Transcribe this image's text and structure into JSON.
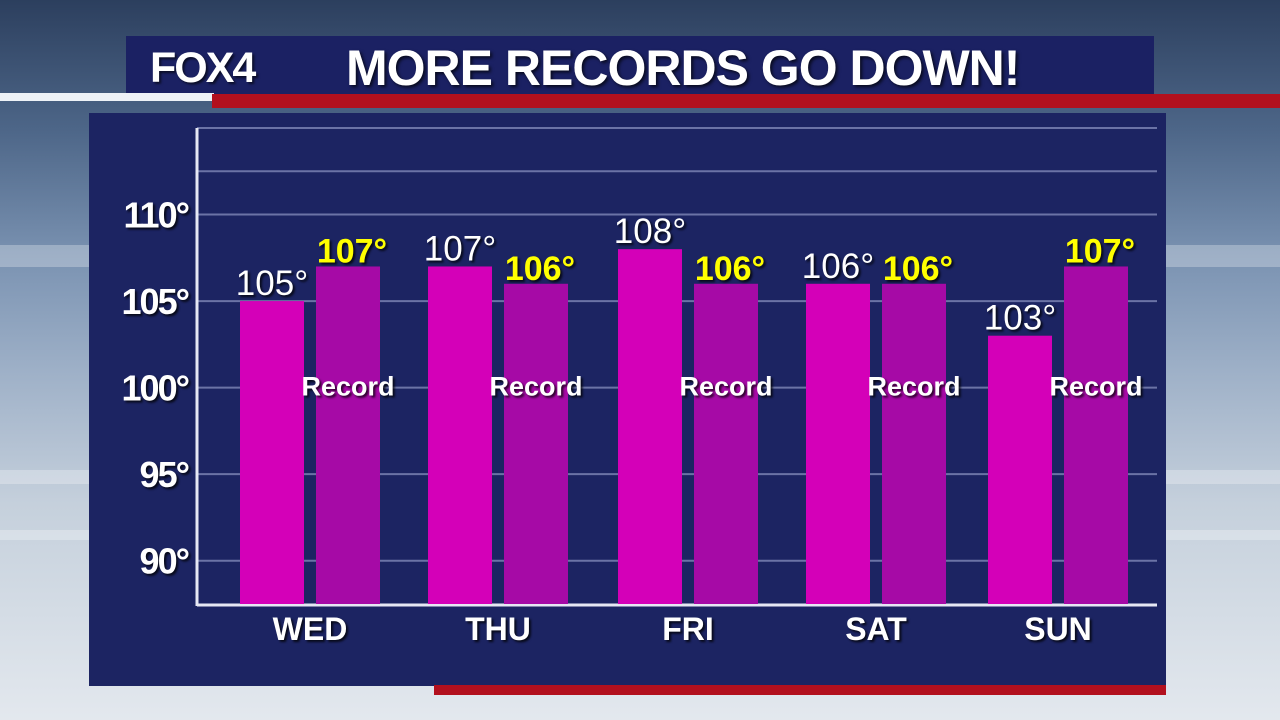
{
  "header": {
    "logo_text": "FOX4",
    "title": "MORE RECORDS GO DOWN!"
  },
  "colors": {
    "panel": "#1c2462",
    "title_bar": "#1b2163",
    "accent_red": "#b2101e",
    "forecast_bar": "#d400b8",
    "record_bar": "#a60aa6",
    "record_value_text": "#ffff00",
    "forecast_value_text": "#ffffff"
  },
  "chart_data": {
    "type": "bar",
    "categories": [
      "WED",
      "THU",
      "FRI",
      "SAT",
      "SUN"
    ],
    "series": [
      {
        "values": [
          105,
          107,
          108,
          106,
          103
        ],
        "value_labels": [
          "105°",
          "107°",
          "108°",
          "106°",
          "103°"
        ]
      },
      {
        "name": "Record",
        "values": [
          107,
          106,
          106,
          106,
          107
        ],
        "value_labels": [
          "107°",
          "106°",
          "106°",
          "106°",
          "107°"
        ]
      }
    ],
    "ylim": [
      87.5,
      115
    ],
    "yticks": [
      90,
      95,
      100,
      105,
      110
    ],
    "ytick_labels": [
      "90°",
      "95°",
      "100°",
      "105°",
      "110°"
    ],
    "grid": true,
    "legend": "none"
  }
}
